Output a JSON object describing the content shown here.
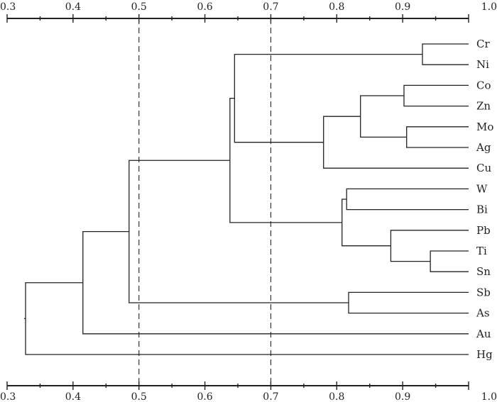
{
  "chart_data": {
    "type": "dendrogram",
    "axis": {
      "min": 0.3,
      "max": 1.0,
      "ticks": [
        0.3,
        0.4,
        0.5,
        0.6,
        0.7,
        0.8,
        0.9,
        1.0
      ],
      "tick_labels": [
        "0.3",
        "0.4",
        "0.5",
        "0.6",
        "0.7",
        "0.8",
        "0.9",
        "1.0"
      ],
      "top_and_bottom": true
    },
    "leaves": [
      "Cr",
      "Ni",
      "Co",
      "Zn",
      "Mo",
      "Ag",
      "Cu",
      "W",
      "Bi",
      "Pb",
      "Ti",
      "Sn",
      "Sb",
      "As",
      "Au",
      "Hg"
    ],
    "merges": [
      {
        "id": "m1",
        "left": "Cr",
        "right": "Ni",
        "height": 0.93
      },
      {
        "id": "m2",
        "left": "Co",
        "right": "Zn",
        "height": 0.902
      },
      {
        "id": "m3",
        "left": "Mo",
        "right": "Ag",
        "height": 0.906
      },
      {
        "id": "m4",
        "left": "m2",
        "right": "m3",
        "height": 0.836
      },
      {
        "id": "m5",
        "left": "m4",
        "right": "Cu",
        "height": 0.78
      },
      {
        "id": "m6",
        "left": "m1",
        "right": "m5",
        "height": 0.645
      },
      {
        "id": "m7",
        "left": "W",
        "right": "Bi",
        "height": 0.815
      },
      {
        "id": "m8",
        "left": "Ti",
        "right": "Sn",
        "height": 0.942
      },
      {
        "id": "m9",
        "left": "Pb",
        "right": "m8",
        "height": 0.882
      },
      {
        "id": "m10",
        "left": "m7",
        "right": "m9",
        "height": 0.808
      },
      {
        "id": "m11",
        "left": "m6",
        "right": "m10",
        "height": 0.638
      },
      {
        "id": "m12",
        "left": "Sb",
        "right": "As",
        "height": 0.818
      },
      {
        "id": "m13",
        "left": "m11",
        "right": "m12",
        "height": 0.485
      },
      {
        "id": "m14",
        "left": "m13",
        "right": "Au",
        "height": 0.415
      },
      {
        "id": "m15",
        "left": "m14",
        "right": "Hg",
        "height": 0.328
      }
    ],
    "cut_lines": [
      0.5,
      0.7
    ],
    "grid": false
  }
}
